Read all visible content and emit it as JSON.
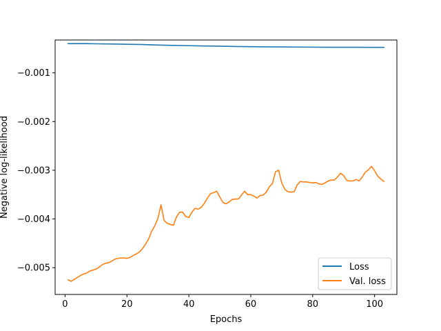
{
  "chart_data": {
    "type": "line",
    "title": "",
    "xlabel": "Epochs",
    "ylabel": "Negative log-likelihood",
    "xlim": [
      -3.2,
      107.2
    ],
    "ylim": [
      -0.00555,
      -0.000325
    ],
    "xticks": [
      0,
      20,
      40,
      60,
      80,
      100
    ],
    "xtick_labels": [
      "0",
      "20",
      "40",
      "60",
      "80",
      "100"
    ],
    "yticks": [
      -0.005,
      -0.004,
      -0.003,
      -0.002,
      -0.001
    ],
    "ytick_labels": [
      "−0.005",
      "−0.004",
      "−0.003",
      "−0.002",
      "−0.001"
    ],
    "grid": false,
    "legend_position": "lower-right",
    "series": [
      {
        "name": "Loss",
        "color": "#1f77b4",
        "x": [
          1,
          5,
          10,
          15,
          20,
          25,
          30,
          35,
          40,
          45,
          50,
          55,
          60,
          65,
          70,
          75,
          80,
          85,
          90,
          95,
          100,
          103
        ],
        "y": [
          -0.0004,
          -0.000398,
          -0.000403,
          -0.000408,
          -0.000412,
          -0.000418,
          -0.000428,
          -0.000435,
          -0.000442,
          -0.000448,
          -0.000452,
          -0.000458,
          -0.000462,
          -0.000466,
          -0.000468,
          -0.00047,
          -0.000472,
          -0.000474,
          -0.000474,
          -0.000475,
          -0.000476,
          -0.000476
        ]
      },
      {
        "name": "Val. loss",
        "color": "#ff7f0e",
        "x": [
          1,
          2,
          3,
          4,
          5,
          6,
          7,
          8,
          9,
          10,
          11,
          12,
          13,
          14,
          15,
          16,
          17,
          18,
          19,
          20,
          21,
          22,
          23,
          24,
          25,
          26,
          27,
          28,
          29,
          30,
          31,
          32,
          33,
          34,
          35,
          36,
          37,
          38,
          39,
          40,
          41,
          42,
          43,
          44,
          45,
          46,
          47,
          48,
          49,
          50,
          51,
          52,
          53,
          54,
          55,
          56,
          57,
          58,
          59,
          60,
          61,
          62,
          63,
          64,
          65,
          66,
          67,
          68,
          69,
          70,
          71,
          72,
          73,
          74,
          75,
          76,
          77,
          78,
          79,
          80,
          81,
          82,
          83,
          84,
          85,
          86,
          87,
          88,
          89,
          90,
          91,
          92,
          93,
          94,
          95,
          96,
          97,
          98,
          99,
          100,
          101,
          102,
          103
        ],
        "y": [
          -0.00525,
          -0.00528,
          -0.00524,
          -0.0052,
          -0.00516,
          -0.00513,
          -0.00511,
          -0.00507,
          -0.00505,
          -0.00503,
          -0.00499,
          -0.00494,
          -0.00491,
          -0.0049,
          -0.00487,
          -0.00483,
          -0.00481,
          -0.0048,
          -0.0048,
          -0.00481,
          -0.00479,
          -0.00475,
          -0.00472,
          -0.00468,
          -0.00461,
          -0.00452,
          -0.00441,
          -0.00425,
          -0.00414,
          -0.00399,
          -0.00371,
          -0.00403,
          -0.00409,
          -0.00411,
          -0.00413,
          -0.00396,
          -0.00386,
          -0.00386,
          -0.00395,
          -0.00397,
          -0.00386,
          -0.00378,
          -0.0038,
          -0.00376,
          -0.00368,
          -0.00357,
          -0.00348,
          -0.00346,
          -0.00343,
          -0.00355,
          -0.00366,
          -0.00369,
          -0.00365,
          -0.0036,
          -0.00359,
          -0.00359,
          -0.00351,
          -0.00343,
          -0.0035,
          -0.0035,
          -0.00353,
          -0.00357,
          -0.00352,
          -0.00351,
          -0.00345,
          -0.00334,
          -0.00327,
          -0.00303,
          -0.003,
          -0.00326,
          -0.00339,
          -0.00344,
          -0.00345,
          -0.00344,
          -0.0033,
          -0.00323,
          -0.00324,
          -0.00324,
          -0.00325,
          -0.00326,
          -0.00325,
          -0.00328,
          -0.00329,
          -0.00326,
          -0.00322,
          -0.0032,
          -0.0032,
          -0.00314,
          -0.00306,
          -0.00311,
          -0.00321,
          -0.00322,
          -0.00322,
          -0.00319,
          -0.00322,
          -0.00314,
          -0.00304,
          -0.00299,
          -0.00292,
          -0.00301,
          -0.00312,
          -0.00318,
          -0.00323
        ]
      }
    ]
  }
}
